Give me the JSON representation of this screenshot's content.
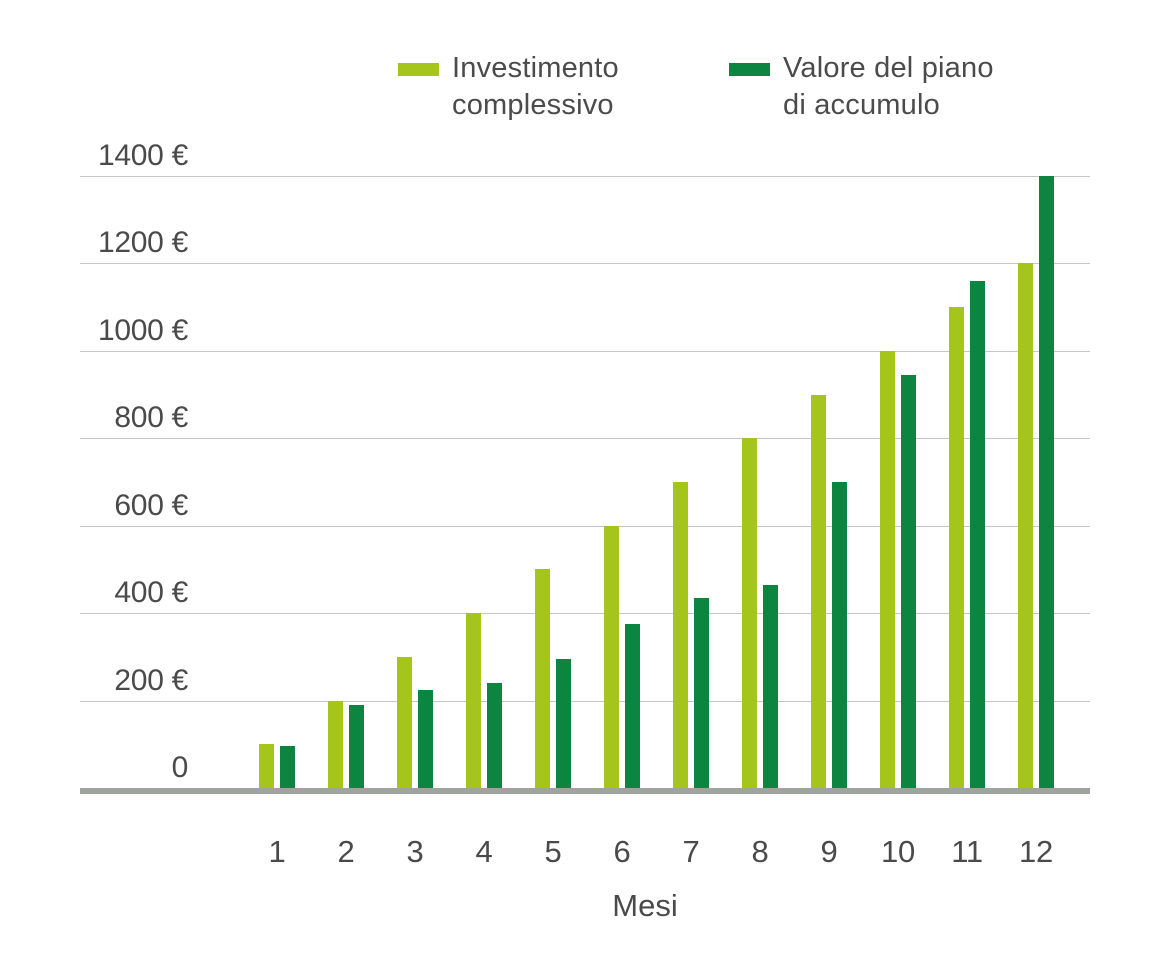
{
  "chart_data": {
    "type": "bar",
    "title": "",
    "xlabel": "Mesi",
    "ylabel": "",
    "x_categories": [
      "1",
      "2",
      "3",
      "4",
      "5",
      "6",
      "7",
      "8",
      "9",
      "10",
      "11",
      "12"
    ],
    "series": [
      {
        "name": "Investimento complessivo",
        "color": "#a5c41c",
        "values": [
          100,
          200,
          300,
          400,
          500,
          600,
          700,
          800,
          900,
          1000,
          1100,
          1200
        ]
      },
      {
        "name": "Valore del piano di accumulo",
        "color": "#0b8540",
        "values": [
          95,
          190,
          225,
          240,
          295,
          375,
          435,
          465,
          700,
          945,
          1160,
          1400
        ]
      }
    ],
    "yticks": [
      {
        "value": 0,
        "label": "0"
      },
      {
        "value": 200,
        "label": "200 €"
      },
      {
        "value": 400,
        "label": "400 €"
      },
      {
        "value": 600,
        "label": "600 €"
      },
      {
        "value": 800,
        "label": "800 €"
      },
      {
        "value": 1000,
        "label": "1000 €"
      },
      {
        "value": 1200,
        "label": "1200 €"
      },
      {
        "value": 1400,
        "label": "1400 €"
      }
    ],
    "ylim": [
      0,
      1400
    ],
    "grid": true,
    "legend_position": "top"
  },
  "colors": {
    "series_investimento": "#a5c41c",
    "series_valore": "#0b8540",
    "gridline": "#c6c6c6",
    "baseline": "#a0a49e",
    "axis_text": "#4a4a4a",
    "legend_text": "#4b4b4b",
    "background": "#ffffff"
  }
}
